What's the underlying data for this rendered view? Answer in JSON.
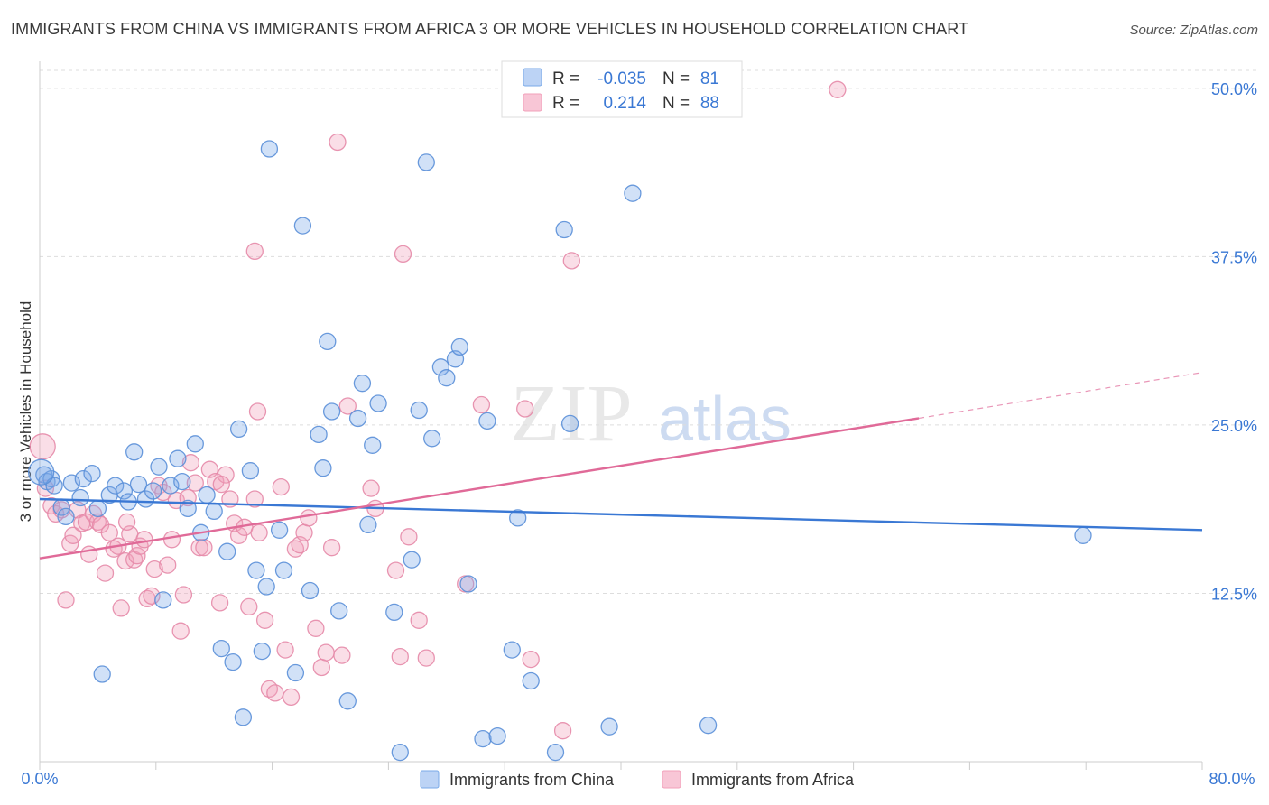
{
  "header": {
    "title": "IMMIGRANTS FROM CHINA VS IMMIGRANTS FROM AFRICA 3 OR MORE VEHICLES IN HOUSEHOLD CORRELATION CHART",
    "source": "Source: ZipAtlas.com"
  },
  "watermark": {
    "zip": "ZIP",
    "atlas": "atlas"
  },
  "colors": {
    "china": "#7aaae8",
    "china_line": "#3a78d4",
    "africa": "#f2a0ba",
    "africa_line": "#e06a98",
    "grid": "#dddddd",
    "tick_label": "#3a78d4"
  },
  "chart_data": {
    "type": "scatter",
    "title": "IMMIGRANTS FROM CHINA VS IMMIGRANTS FROM AFRICA 3 OR MORE VEHICLES IN HOUSEHOLD CORRELATION CHART",
    "xlabel": "",
    "ylabel": "3 or more Vehicles in Household",
    "xlim": [
      0,
      80
    ],
    "ylim": [
      0,
      52
    ],
    "x_tick_labels": [
      "0.0%",
      "80.0%"
    ],
    "y_ticks": [
      12.5,
      25.0,
      37.5,
      50.0
    ],
    "y_tick_labels": [
      "12.5%",
      "25.0%",
      "37.5%",
      "50.0%"
    ],
    "legend": {
      "placement": "top-center",
      "rows": [
        {
          "r_label": "R =",
          "r_value": "-0.035",
          "n_label": "N =",
          "n_value": "81"
        },
        {
          "r_label": "R =",
          "r_value": "0.214",
          "n_label": "N =",
          "n_value": "88"
        }
      ]
    },
    "bottom_legend": [
      "Immigrants from China",
      "Immigrants from Africa"
    ],
    "series": [
      {
        "name": "Immigrants from China",
        "r": -0.035,
        "n": 81,
        "trend": {
          "x": [
            0,
            80
          ],
          "y": [
            19.5,
            17.2
          ]
        },
        "points": [
          [
            0.3,
            21.3
          ],
          [
            0.5,
            20.8
          ],
          [
            0.8,
            21.0
          ],
          [
            1.0,
            20.5
          ],
          [
            1.5,
            18.9
          ],
          [
            1.8,
            18.2
          ],
          [
            2.2,
            20.7
          ],
          [
            2.8,
            19.6
          ],
          [
            3.0,
            21.0
          ],
          [
            3.6,
            21.4
          ],
          [
            4.0,
            18.8
          ],
          [
            4.3,
            6.5
          ],
          [
            4.8,
            19.8
          ],
          [
            5.2,
            20.5
          ],
          [
            5.8,
            20.1
          ],
          [
            6.1,
            19.3
          ],
          [
            6.5,
            23.0
          ],
          [
            6.8,
            20.6
          ],
          [
            7.3,
            19.5
          ],
          [
            7.8,
            20.1
          ],
          [
            8.2,
            21.9
          ],
          [
            8.5,
            12.0
          ],
          [
            9.0,
            20.5
          ],
          [
            9.5,
            22.5
          ],
          [
            9.8,
            20.8
          ],
          [
            10.2,
            18.8
          ],
          [
            10.7,
            23.6
          ],
          [
            11.1,
            17.0
          ],
          [
            11.5,
            19.8
          ],
          [
            12.0,
            18.6
          ],
          [
            12.5,
            8.4
          ],
          [
            12.9,
            15.6
          ],
          [
            13.3,
            7.4
          ],
          [
            13.7,
            24.7
          ],
          [
            14.0,
            3.3
          ],
          [
            14.5,
            21.6
          ],
          [
            14.9,
            14.2
          ],
          [
            15.3,
            8.2
          ],
          [
            15.6,
            13.0
          ],
          [
            15.8,
            45.5
          ],
          [
            16.5,
            17.2
          ],
          [
            16.8,
            14.2
          ],
          [
            17.6,
            6.6
          ],
          [
            18.1,
            39.8
          ],
          [
            18.6,
            12.7
          ],
          [
            19.2,
            24.3
          ],
          [
            19.5,
            21.8
          ],
          [
            19.8,
            31.2
          ],
          [
            20.1,
            26.0
          ],
          [
            20.6,
            11.2
          ],
          [
            21.2,
            4.5
          ],
          [
            21.9,
            25.5
          ],
          [
            22.2,
            28.1
          ],
          [
            22.6,
            17.6
          ],
          [
            22.9,
            23.5
          ],
          [
            23.3,
            26.6
          ],
          [
            24.4,
            11.1
          ],
          [
            24.8,
            0.7
          ],
          [
            25.6,
            15.0
          ],
          [
            26.1,
            26.1
          ],
          [
            26.6,
            44.5
          ],
          [
            27.0,
            24.0
          ],
          [
            27.6,
            29.3
          ],
          [
            28.0,
            28.5
          ],
          [
            28.6,
            29.9
          ],
          [
            28.9,
            30.8
          ],
          [
            29.5,
            13.2
          ],
          [
            30.5,
            1.7
          ],
          [
            30.8,
            25.3
          ],
          [
            31.5,
            1.9
          ],
          [
            32.5,
            8.3
          ],
          [
            32.9,
            18.1
          ],
          [
            33.8,
            6.0
          ],
          [
            35.5,
            0.7
          ],
          [
            36.1,
            39.5
          ],
          [
            36.5,
            25.1
          ],
          [
            39.2,
            2.6
          ],
          [
            40.8,
            42.2
          ],
          [
            46.0,
            2.7
          ],
          [
            71.8,
            16.8
          ],
          [
            0.1,
            21.5
          ]
        ]
      },
      {
        "name": "Immigrants from Africa",
        "r": 0.214,
        "n": 88,
        "trend": {
          "x": [
            0,
            60.5
          ],
          "y": [
            15.1,
            25.5
          ]
        },
        "trend_dashed": {
          "x": [
            60.5,
            80
          ],
          "y": [
            25.5,
            28.9
          ]
        },
        "points": [
          [
            0.2,
            23.4
          ],
          [
            0.4,
            20.3
          ],
          [
            0.8,
            19.0
          ],
          [
            1.1,
            18.4
          ],
          [
            1.5,
            18.7
          ],
          [
            1.8,
            12.0
          ],
          [
            2.1,
            16.2
          ],
          [
            2.3,
            16.8
          ],
          [
            2.6,
            18.7
          ],
          [
            2.9,
            17.7
          ],
          [
            3.2,
            17.8
          ],
          [
            3.4,
            15.4
          ],
          [
            3.7,
            18.4
          ],
          [
            4.0,
            17.8
          ],
          [
            4.2,
            17.6
          ],
          [
            4.5,
            14.0
          ],
          [
            4.8,
            17.0
          ],
          [
            5.1,
            15.8
          ],
          [
            5.4,
            16.0
          ],
          [
            5.6,
            11.4
          ],
          [
            5.9,
            14.9
          ],
          [
            6.2,
            16.9
          ],
          [
            6.5,
            15.0
          ],
          [
            6.7,
            15.3
          ],
          [
            6.9,
            16.0
          ],
          [
            7.2,
            16.5
          ],
          [
            7.4,
            12.1
          ],
          [
            7.7,
            12.3
          ],
          [
            7.9,
            14.3
          ],
          [
            8.2,
            20.5
          ],
          [
            8.5,
            20.0
          ],
          [
            8.8,
            14.6
          ],
          [
            9.1,
            16.5
          ],
          [
            9.4,
            19.4
          ],
          [
            9.7,
            9.7
          ],
          [
            9.9,
            12.4
          ],
          [
            10.2,
            19.6
          ],
          [
            10.4,
            22.2
          ],
          [
            10.7,
            20.7
          ],
          [
            11.0,
            15.9
          ],
          [
            11.3,
            15.9
          ],
          [
            11.7,
            21.7
          ],
          [
            12.1,
            20.8
          ],
          [
            12.4,
            11.8
          ],
          [
            12.8,
            21.3
          ],
          [
            13.1,
            19.5
          ],
          [
            13.4,
            17.7
          ],
          [
            13.7,
            16.8
          ],
          [
            14.1,
            17.4
          ],
          [
            14.4,
            11.5
          ],
          [
            14.8,
            19.5
          ],
          [
            15.1,
            17.0
          ],
          [
            15.5,
            10.5
          ],
          [
            15.8,
            5.4
          ],
          [
            16.2,
            5.1
          ],
          [
            16.6,
            20.4
          ],
          [
            16.9,
            8.3
          ],
          [
            17.3,
            4.8
          ],
          [
            17.6,
            15.8
          ],
          [
            17.9,
            16.1
          ],
          [
            18.2,
            17.0
          ],
          [
            18.5,
            18.1
          ],
          [
            19.0,
            9.9
          ],
          [
            19.4,
            7.0
          ],
          [
            19.7,
            8.1
          ],
          [
            20.1,
            15.9
          ],
          [
            20.5,
            46.0
          ],
          [
            20.8,
            7.9
          ],
          [
            21.2,
            26.4
          ],
          [
            15.0,
            26.0
          ],
          [
            14.8,
            37.9
          ],
          [
            24.5,
            14.2
          ],
          [
            24.8,
            7.8
          ],
          [
            25.0,
            37.7
          ],
          [
            25.4,
            16.7
          ],
          [
            26.1,
            10.5
          ],
          [
            26.6,
            7.7
          ],
          [
            29.3,
            13.2
          ],
          [
            30.4,
            26.5
          ],
          [
            33.4,
            26.2
          ],
          [
            33.8,
            7.6
          ],
          [
            36.0,
            2.3
          ],
          [
            36.6,
            37.2
          ],
          [
            54.9,
            49.9
          ],
          [
            22.8,
            20.3
          ],
          [
            23.1,
            18.8
          ],
          [
            12.5,
            20.6
          ],
          [
            6.0,
            17.8
          ]
        ]
      }
    ]
  }
}
